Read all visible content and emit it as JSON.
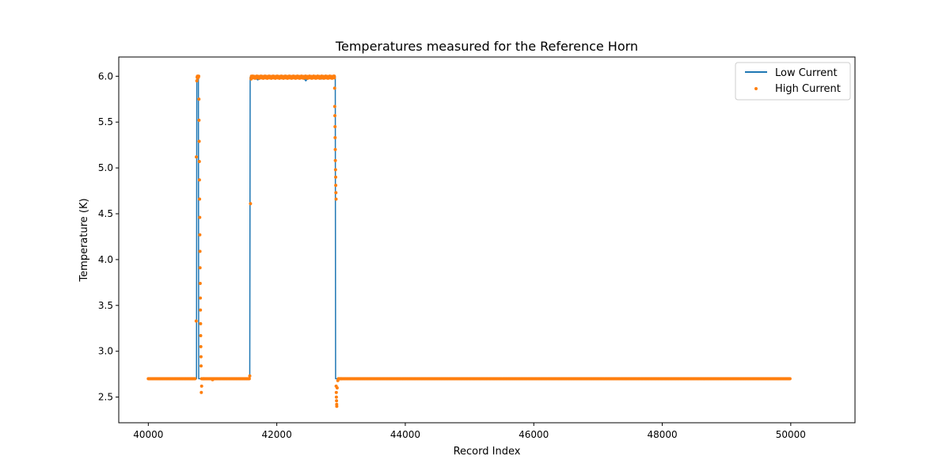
{
  "chart_data": {
    "type": "line",
    "title": "Temperatures measured for the Reference Horn",
    "xlabel": "Record Index",
    "ylabel": "Temperature (K)",
    "xlim": [
      39540,
      51000
    ],
    "ylim": [
      2.22,
      6.21
    ],
    "xticks": [
      40000,
      42000,
      44000,
      46000,
      48000,
      50000
    ],
    "xtick_labels": [
      "40000",
      "42000",
      "44000",
      "46000",
      "48000",
      "50000"
    ],
    "yticks": [
      2.5,
      3.0,
      3.5,
      4.0,
      4.5,
      5.0,
      5.5,
      6.0
    ],
    "ytick_labels": [
      "2.5",
      "3.0",
      "3.5",
      "4.0",
      "4.5",
      "5.0",
      "5.5",
      "6.0"
    ],
    "grid": false,
    "legend_position": "upper right",
    "series": [
      {
        "name": "Low Current",
        "style": "line",
        "color": "#1f77b4",
        "x": [
          40000,
          40750,
          40755,
          40780,
          40785,
          41580,
          41585,
          41650,
          41700,
          41800,
          41900,
          42000,
          42100,
          42200,
          42300,
          42400,
          42450,
          42500,
          42600,
          42700,
          42800,
          42900,
          42910,
          42915,
          50000
        ],
        "y": [
          2.7,
          2.7,
          5.98,
          5.98,
          2.7,
          2.7,
          5.99,
          6.0,
          5.96,
          5.99,
          6.0,
          5.98,
          6.0,
          6.0,
          5.98,
          6.0,
          5.95,
          5.99,
          6.0,
          5.97,
          6.0,
          6.0,
          6.0,
          2.7,
          2.7
        ]
      },
      {
        "name": "High Current",
        "style": "scatter",
        "color": "#ff7f0e",
        "x": [
          40745,
          40748,
          40755,
          40760,
          40765,
          40770,
          40775,
          40780,
          40785,
          40788,
          40790,
          40792,
          40794,
          40796,
          40798,
          40800,
          40802,
          40804,
          40806,
          40808,
          40810,
          40812,
          40814,
          40816,
          40818,
          40820,
          40822,
          40825,
          40830,
          40860,
          41000,
          41580,
          41590,
          41600,
          41605,
          42895,
          42900,
          42902,
          42904,
          42906,
          42908,
          42910,
          42912,
          42914,
          42916,
          42918,
          42920,
          42922,
          42924,
          42926,
          42928,
          42930,
          42932,
          42934,
          42940,
          42950,
          42970,
          43000
        ],
        "y": [
          3.33,
          5.12,
          5.95,
          5.99,
          6.0,
          5.98,
          6.0,
          5.99,
          6.0,
          5.75,
          5.52,
          5.29,
          5.07,
          4.87,
          4.66,
          4.46,
          4.27,
          4.09,
          3.91,
          3.74,
          3.58,
          3.45,
          3.3,
          3.17,
          3.05,
          2.94,
          2.84,
          2.55,
          2.62,
          2.7,
          2.69,
          2.73,
          4.61,
          5.97,
          6.0,
          6.0,
          5.87,
          5.67,
          5.57,
          5.45,
          5.33,
          5.2,
          5.08,
          4.98,
          4.9,
          4.81,
          4.73,
          4.66,
          2.62,
          2.55,
          2.5,
          2.46,
          2.42,
          2.4,
          2.6,
          2.68,
          2.7,
          2.7
        ]
      }
    ]
  }
}
